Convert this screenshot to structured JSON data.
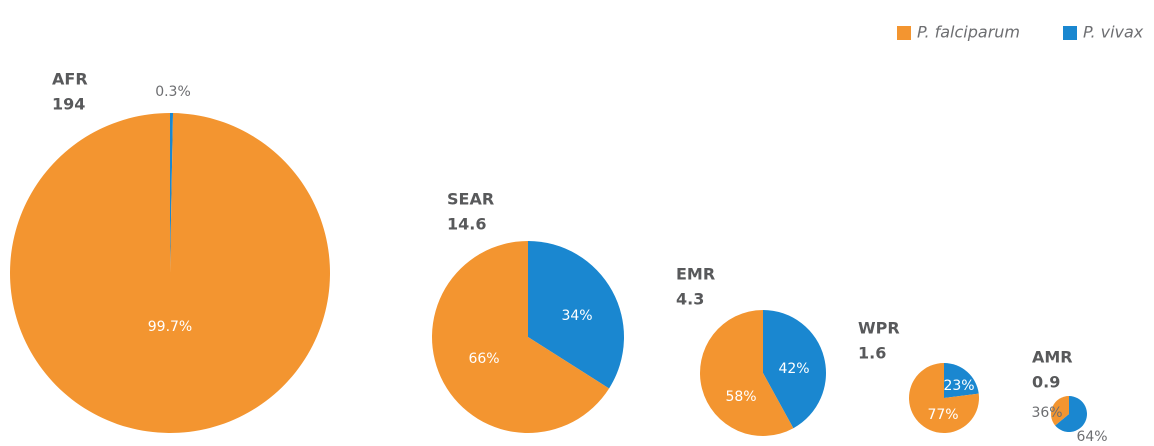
{
  "legend": [
    {
      "name": "P. falciparum",
      "color": "#f39530"
    },
    {
      "name": "P. vivax",
      "color": "#1a87d0"
    }
  ],
  "chart_data": [
    {
      "type": "pie",
      "title": "AFR",
      "total": 194,
      "values": [
        99.7,
        0.3
      ],
      "value_labels": [
        "99.7%",
        "0.3%"
      ]
    },
    {
      "type": "pie",
      "title": "SEAR",
      "total": 14.6,
      "values": [
        66,
        34
      ],
      "value_labels": [
        "66%",
        "34%"
      ]
    },
    {
      "type": "pie",
      "title": "EMR",
      "total": 4.3,
      "values": [
        58,
        42
      ],
      "value_labels": [
        "58%",
        "42%"
      ]
    },
    {
      "type": "pie",
      "title": "WPR",
      "total": 1.6,
      "values": [
        77,
        23
      ],
      "value_labels": [
        "77%",
        "23%"
      ]
    },
    {
      "type": "pie",
      "title": "AMR",
      "total": 0.9,
      "values": [
        36,
        64
      ],
      "value_labels": [
        "36%",
        "64%"
      ]
    }
  ]
}
